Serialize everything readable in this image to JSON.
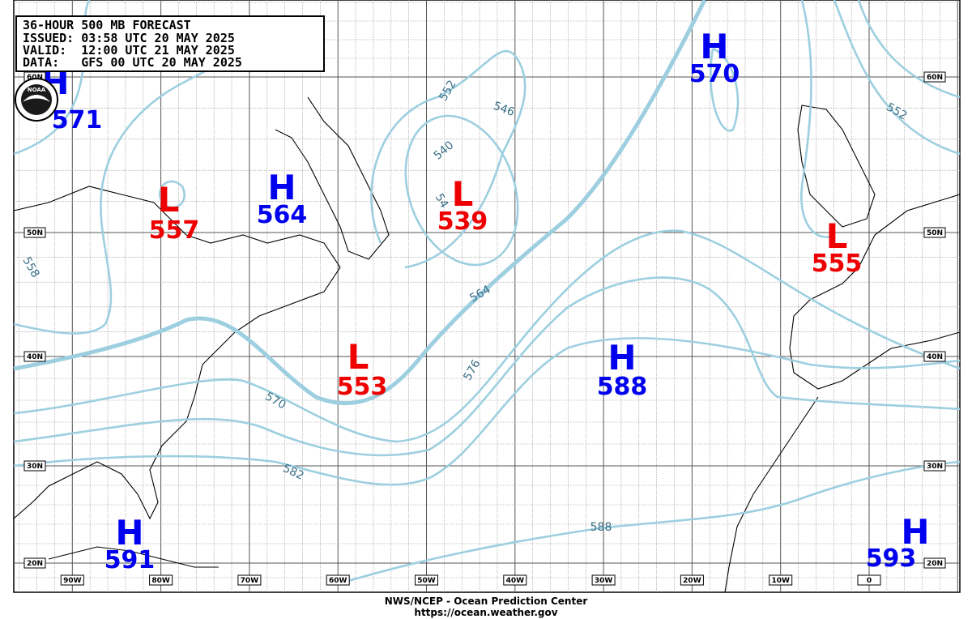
{
  "header": {
    "lines": [
      "36-HOUR 500 MB FORECAST",
      "ISSUED: 03:58 UTC 20 MAY 2025",
      "VALID:  12:00 UTC 21 MAY 2025",
      "DATA:   GFS 00 UTC 20 MAY 2025"
    ]
  },
  "logo": "NOAA",
  "centers": [
    {
      "symbol": "H",
      "value": 571
    },
    {
      "symbol": "L",
      "value": 557
    },
    {
      "symbol": "H",
      "value": 564
    },
    {
      "symbol": "L",
      "value": 539
    },
    {
      "symbol": "L",
      "value": 553
    },
    {
      "symbol": "H",
      "value": 588
    },
    {
      "symbol": "H",
      "value": 570
    },
    {
      "symbol": "L",
      "value": 555
    },
    {
      "symbol": "H",
      "value": 591
    },
    {
      "symbol": "H",
      "value": 593
    }
  ],
  "contour_labels": [
    552,
    546,
    540,
    54,
    558,
    564,
    576,
    570,
    582,
    588,
    552
  ],
  "latitude_labels": [
    "60N",
    "50N",
    "40N",
    "30N",
    "20N"
  ],
  "longitude_labels": [
    "90W",
    "80W",
    "70W",
    "60W",
    "50W",
    "40W",
    "30W",
    "20W",
    "10W",
    "0"
  ],
  "footer": {
    "agency": "NWS/NCEP - Ocean Prediction Center",
    "url": "https://ocean.weather.gov"
  }
}
